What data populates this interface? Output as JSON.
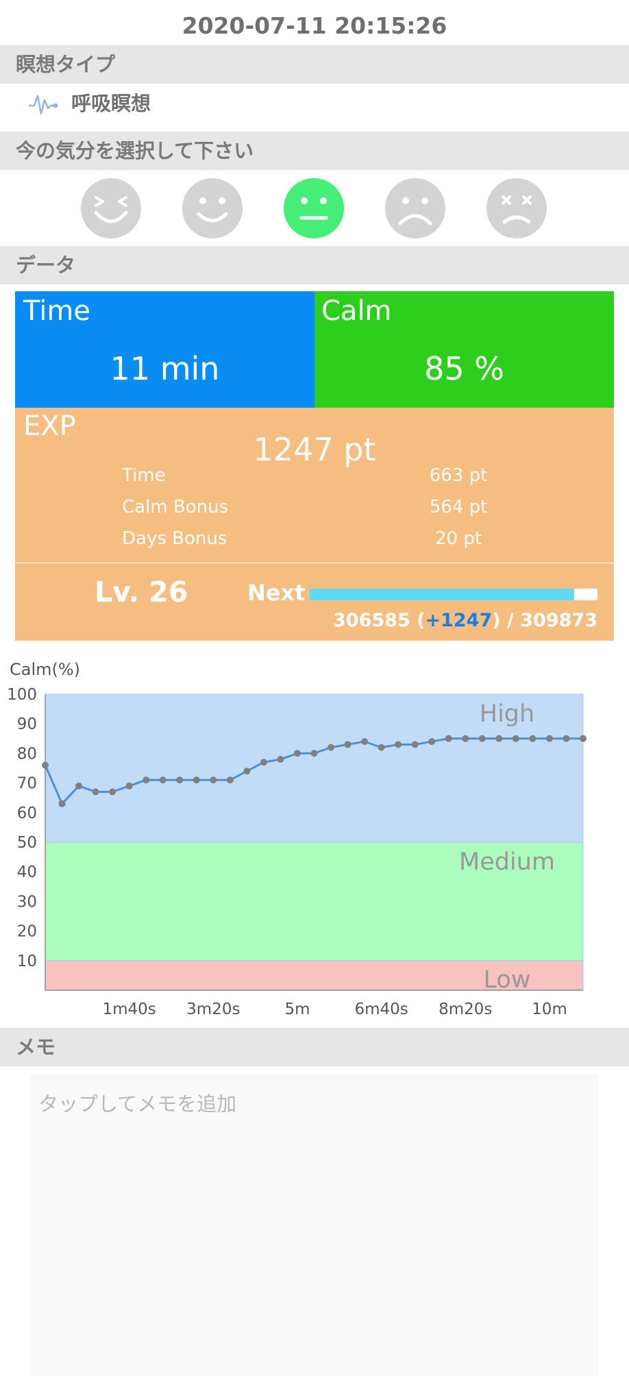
{
  "header": {
    "datetime": "2020-07-11 20:15:26"
  },
  "meditation_type": {
    "section_label": "瞑想タイプ",
    "type_label": "呼吸瞑想",
    "icon": "pulse-icon"
  },
  "mood": {
    "section_label": "今の気分を選択して下さい",
    "selected_index": 2,
    "options": [
      {
        "icon": "laughing-face-icon",
        "color": "#d3d3d3"
      },
      {
        "icon": "smiling-face-icon",
        "color": "#d3d3d3"
      },
      {
        "icon": "neutral-face-icon",
        "color": "#44ee77"
      },
      {
        "icon": "sad-face-icon",
        "color": "#d3d3d3"
      },
      {
        "icon": "dizzy-face-icon",
        "color": "#d3d3d3"
      }
    ]
  },
  "data_section": {
    "section_label": "データ",
    "time": {
      "title": "Time",
      "value": "11 min",
      "color": "#0a8cf5"
    },
    "calm": {
      "title": "Calm",
      "value": "85 %",
      "color": "#2ecf1c"
    },
    "exp": {
      "title": "EXP",
      "total": "1247 pt",
      "color": "#f5bd80",
      "rows": [
        {
          "label": "Time",
          "value": "663 pt"
        },
        {
          "label": "Calm Bonus",
          "value": "564 pt"
        },
        {
          "label": "Days Bonus",
          "value": "20 pt"
        }
      ]
    },
    "level": {
      "label": "Lv. 26",
      "next_label": "Next",
      "progress_fraction": 0.92,
      "bar_color": "#5fd9f4",
      "current": "306585 (",
      "gain": "+1247",
      "target": ") / 309873"
    }
  },
  "chart_data": {
    "type": "line",
    "title": "",
    "ylabel": "Calm(%)",
    "xlabel": "",
    "ylim": [
      0,
      100
    ],
    "xlim": [
      0,
      640
    ],
    "y_ticks": [
      10,
      20,
      30,
      40,
      50,
      60,
      70,
      80,
      90,
      100
    ],
    "x_ticks": [
      {
        "value": 100,
        "label": "1m40s"
      },
      {
        "value": 200,
        "label": "3m20s"
      },
      {
        "value": 300,
        "label": "5m"
      },
      {
        "value": 400,
        "label": "6m40s"
      },
      {
        "value": 500,
        "label": "8m20s"
      },
      {
        "value": 600,
        "label": "10m"
      }
    ],
    "bands": [
      {
        "name": "High",
        "from": 50,
        "to": 100,
        "color": "#c2dcf8"
      },
      {
        "name": "Medium",
        "from": 10,
        "to": 50,
        "color": "#acfcbe"
      },
      {
        "name": "Low",
        "from": 0,
        "to": 10,
        "color": "#f8c2c2"
      }
    ],
    "series": [
      {
        "line_color": "#4a8fd8",
        "point_color": "#808080",
        "x": [
          0,
          20,
          40,
          60,
          80,
          100,
          120,
          140,
          160,
          180,
          200,
          220,
          240,
          260,
          280,
          300,
          320,
          340,
          360,
          380,
          400,
          420,
          440,
          460,
          480,
          500,
          520,
          540,
          560,
          580,
          600,
          620,
          640
        ],
        "values": [
          76,
          63,
          69,
          67,
          67,
          69,
          71,
          71,
          71,
          71,
          71,
          71,
          74,
          77,
          78,
          80,
          80,
          82,
          83,
          84,
          82,
          83,
          83,
          84,
          85,
          85,
          85,
          85,
          85,
          85,
          85,
          85,
          85
        ]
      }
    ]
  },
  "memo": {
    "section_label": "メモ",
    "placeholder": "タップしてメモを追加"
  }
}
